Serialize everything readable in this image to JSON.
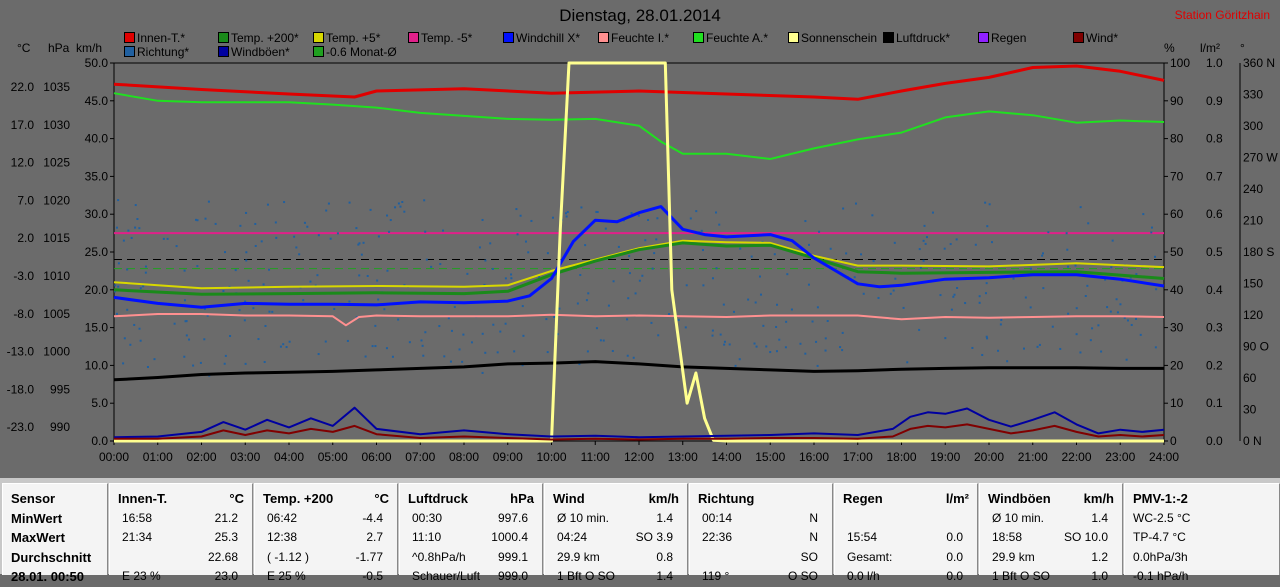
{
  "title": "Dienstag, 28.01.2014",
  "station": "Station Göritzhain",
  "unit_labels": {
    "celsius": "°C",
    "hpa": "hPa",
    "kmh": "km/h",
    "percent": "%",
    "lm2": "l/m²",
    "deg": "°"
  },
  "legend": [
    {
      "label": "Innen-T.*",
      "color": "#e00000"
    },
    {
      "label": "Temp. +200*",
      "color": "#1a8a1a"
    },
    {
      "label": "Temp. +5*",
      "color": "#d8d800"
    },
    {
      "label": "Temp. -5*",
      "color": "#e0208a"
    },
    {
      "label": "Windchill X*",
      "color": "#0010ff"
    },
    {
      "label": "Feuchte I.*",
      "color": "#ff9090"
    },
    {
      "label": "Feuchte A.*",
      "color": "#20e020"
    },
    {
      "label": "Sonnenschein",
      "color": "#ffff90"
    },
    {
      "label": "Luftdruck*",
      "color": "#000000"
    },
    {
      "label": "Regen",
      "color": "#9020ff"
    },
    {
      "label": "Wind*",
      "color": "#800000"
    },
    {
      "label": "Richtung*",
      "color": "#2060a0"
    },
    {
      "label": "Windböen*",
      "color": "#0000a0"
    },
    {
      "label": "-0.6 Monat-Ø",
      "color": "#20a020"
    }
  ],
  "axes": {
    "temp_ticks": [
      "22.0",
      "17.0",
      "12.0",
      "7.0",
      "2.0",
      "-3.0",
      "-8.0",
      "-13.0",
      "-18.0",
      "-23.0"
    ],
    "hpa_ticks": [
      "1035",
      "1030",
      "1025",
      "1020",
      "1015",
      "1010",
      "1005",
      "1000",
      "995",
      "990"
    ],
    "kmh_ticks": [
      "50.0",
      "45.0",
      "40.0",
      "35.0",
      "30.0",
      "25.0",
      "20.0",
      "15.0",
      "10.0",
      "5.0",
      "0.0"
    ],
    "pct_ticks": [
      "100",
      "90",
      "80",
      "70",
      "60",
      "50",
      "40",
      "30",
      "20",
      "10",
      "0"
    ],
    "lm2_ticks": [
      "1.0",
      "0.9",
      "0.8",
      "0.7",
      "0.6",
      "0.5",
      "0.4",
      "0.3",
      "0.2",
      "0.1",
      "0.0"
    ],
    "deg_ticks": [
      "360 N",
      "330",
      "300",
      "270 W",
      "240",
      "210",
      "180 S",
      "150",
      "120",
      "90 O",
      "60",
      "30",
      "0  N"
    ],
    "time_ticks": [
      "00:00",
      "01:00",
      "02:00",
      "03:00",
      "04:00",
      "05:00",
      "06:00",
      "07:00",
      "08:00",
      "09:00",
      "10:00",
      "11:00",
      "12:00",
      "13:00",
      "14:00",
      "15:00",
      "16:00",
      "17:00",
      "18:00",
      "19:00",
      "20:00",
      "21:00",
      "22:00",
      "23:00",
      "24:00"
    ]
  },
  "chart_data": {
    "type": "line",
    "x_unit": "hours",
    "ylim_left_kmh": [
      0,
      50
    ],
    "ylim_temp_c": [
      -23,
      27
    ],
    "ylim_hpa": [
      990,
      1040
    ],
    "ylim_percent": [
      0,
      100
    ],
    "ylim_deg": [
      0,
      360
    ],
    "reference_lines": [
      {
        "name": "Temp. -5*",
        "value_kmh": 27.5,
        "color": "#e0208a"
      },
      {
        "name": "-0.6 Monat-Ø",
        "value_kmh": 22.8,
        "color": "#20a020",
        "style": "dashed"
      },
      {
        "name": "",
        "value_kmh": 24.0,
        "color": "#000000",
        "style": "dashed"
      }
    ],
    "series": [
      {
        "name": "Innen-T.*",
        "color": "#e00000",
        "x": [
          0,
          2,
          4,
          5.5,
          6,
          8,
          10,
          12,
          14,
          16,
          17,
          18,
          19,
          20,
          21,
          22,
          23,
          24
        ],
        "y": [
          47.2,
          46.5,
          45.9,
          45.5,
          46.3,
          46.6,
          46.0,
          46.3,
          45.9,
          45.5,
          45.2,
          46.3,
          47.3,
          48.1,
          49.4,
          49.6,
          48.9,
          47.7
        ]
      },
      {
        "name": "Feuchte A.*",
        "color": "#20e020",
        "x": [
          0,
          1,
          2,
          4,
          5,
          6,
          7,
          9,
          10,
          11,
          12,
          12.5,
          13,
          14,
          15,
          16,
          17,
          18,
          19,
          20,
          21,
          22,
          23,
          24
        ],
        "y": [
          46.0,
          45.0,
          44.8,
          44.8,
          44.5,
          44.1,
          43.4,
          42.6,
          42.5,
          42.6,
          41.7,
          39.6,
          38.0,
          38.0,
          37.3,
          38.7,
          39.9,
          40.8,
          42.8,
          43.6,
          43.1,
          42.1,
          42.4,
          42.2
        ]
      },
      {
        "name": "Temp. +5*",
        "color": "#d8d800",
        "x": [
          0,
          2,
          4,
          6,
          8,
          9,
          10,
          11,
          12,
          13,
          14,
          15,
          16,
          17,
          18,
          20,
          22,
          24
        ],
        "y": [
          21.0,
          20.2,
          20.4,
          20.5,
          20.4,
          20.6,
          22.5,
          24.0,
          25.5,
          26.5,
          26.3,
          26.2,
          24.5,
          23.2,
          23.2,
          23.1,
          23.5,
          23.0
        ]
      },
      {
        "name": "Temp. +200*",
        "color": "#1a8a1a",
        "x": [
          0,
          2,
          4,
          6,
          8,
          9,
          10,
          11,
          12,
          13,
          14,
          15,
          16,
          17,
          18,
          20,
          22,
          24
        ],
        "y": [
          20.0,
          19.4,
          19.5,
          19.6,
          19.5,
          19.8,
          22.0,
          23.8,
          25.3,
          26.2,
          25.8,
          25.9,
          24.2,
          22.4,
          22.2,
          22.3,
          22.4,
          21.5
        ]
      },
      {
        "name": "Windchill X*",
        "color": "#0010ff",
        "x": [
          0,
          1,
          2,
          3,
          4,
          5,
          6,
          7,
          8,
          9,
          9.5,
          10,
          10.5,
          11,
          11.5,
          12,
          12.5,
          13,
          13.5,
          14,
          15,
          15.5,
          16,
          17,
          17.5,
          18,
          19,
          20,
          21,
          22,
          23,
          24
        ],
        "y": [
          19.0,
          18.2,
          17.7,
          18.2,
          18.1,
          18.1,
          18.0,
          18.4,
          18.3,
          18.5,
          19.2,
          21.5,
          26.4,
          29.2,
          29.0,
          30.2,
          31.0,
          28.0,
          27.3,
          27.0,
          27.3,
          26.5,
          24.2,
          20.8,
          20.4,
          20.6,
          21.4,
          21.6,
          22.0,
          22.0,
          21.4,
          20.5
        ]
      },
      {
        "name": "Feuchte I.*",
        "color": "#ff9090",
        "x": [
          0,
          1,
          2,
          3,
          4,
          5,
          5.3,
          5.6,
          6,
          7,
          8,
          9,
          10,
          11,
          12,
          13,
          14,
          15,
          16,
          17,
          18,
          19,
          20,
          21,
          22,
          23,
          24
        ],
        "y": [
          16.5,
          16.8,
          16.8,
          16.6,
          16.6,
          16.5,
          15.3,
          16.4,
          16.6,
          16.5,
          16.5,
          16.5,
          16.7,
          16.5,
          16.6,
          16.5,
          16.4,
          16.6,
          16.6,
          16.6,
          16.1,
          16.4,
          16.3,
          16.4,
          16.5,
          16.5,
          16.4
        ]
      },
      {
        "name": "Luftdruck*",
        "color": "#000000",
        "x": [
          0,
          1,
          2,
          3,
          4,
          5,
          6,
          7,
          8,
          9,
          10,
          11,
          12,
          13,
          14,
          15,
          16,
          17,
          18,
          19,
          20,
          21,
          22,
          23,
          24
        ],
        "y": [
          8.1,
          8.4,
          8.8,
          9.0,
          9.1,
          9.2,
          9.4,
          9.6,
          9.8,
          10.2,
          10.3,
          10.5,
          10.2,
          9.8,
          9.6,
          9.4,
          9.2,
          9.3,
          9.5,
          9.6,
          9.7,
          9.7,
          9.7,
          9.6,
          9.6
        ]
      },
      {
        "name": "Sonnenschein",
        "color": "#ffff90",
        "x": [
          0,
          10.0,
          10.2,
          10.4,
          12.0,
          12.6,
          12.75,
          13.1,
          13.3,
          13.5,
          13.7,
          14.0,
          24
        ],
        "y": [
          0,
          0,
          28.0,
          50,
          50,
          50,
          20.0,
          5.0,
          9.0,
          3.0,
          0.1,
          0,
          0
        ]
      },
      {
        "name": "Windböen*",
        "color": "#0000a0",
        "x": [
          0,
          1,
          2,
          2.5,
          3,
          3.5,
          4,
          4.5,
          5,
          5.5,
          6,
          7,
          8,
          9,
          10,
          11,
          12,
          13,
          14,
          15,
          16,
          17,
          17.8,
          18.2,
          18.6,
          19,
          19.5,
          20,
          20.5,
          21,
          21.5,
          22,
          22.5,
          23,
          23.5,
          24
        ],
        "y": [
          0.5,
          0.6,
          1.2,
          2.5,
          1.5,
          2.8,
          1.8,
          3.0,
          2.0,
          4.4,
          1.6,
          0.9,
          1.4,
          0.9,
          0.6,
          0.7,
          0.5,
          0.6,
          0.7,
          0.8,
          1.0,
          0.8,
          1.6,
          3.2,
          3.8,
          3.6,
          4.3,
          2.8,
          1.9,
          2.8,
          3.8,
          2.2,
          1.0,
          1.5,
          1.2,
          1.5
        ]
      },
      {
        "name": "Wind*",
        "color": "#800000",
        "x": [
          0,
          1,
          2,
          2.5,
          3,
          3.5,
          4,
          4.5,
          5,
          5.5,
          6,
          7,
          8,
          9,
          10,
          11,
          12,
          13,
          14,
          15,
          16,
          17,
          17.8,
          18.2,
          18.6,
          19,
          19.5,
          20,
          20.5,
          21,
          21.5,
          22,
          22.5,
          23,
          23.5,
          24
        ],
        "y": [
          0.3,
          0.3,
          0.6,
          1.4,
          0.8,
          1.4,
          1.0,
          1.6,
          1.2,
          2.0,
          0.9,
          0.4,
          0.6,
          0.4,
          0.2,
          0.3,
          0.2,
          0.3,
          0.3,
          0.4,
          0.4,
          0.3,
          0.6,
          1.6,
          2.0,
          1.8,
          2.2,
          1.6,
          1.0,
          1.4,
          2.0,
          1.2,
          0.6,
          0.8,
          0.6,
          0.8
        ]
      }
    ]
  },
  "table": {
    "row_labels": [
      "Sensor",
      "MinWert",
      "MaxWert",
      "Durchschnitt",
      "28.01. 00:50"
    ],
    "panels": [
      {
        "name": "Innen-T.",
        "unit": "°C",
        "rows": [
          [
            "16:58",
            "21.2"
          ],
          [
            "21:34",
            "25.3"
          ],
          [
            "",
            "22.68"
          ],
          [
            "E 23 %",
            "23.0"
          ]
        ]
      },
      {
        "name": "Temp. +200",
        "unit": "°C",
        "rows": [
          [
            "06:42",
            "-4.4"
          ],
          [
            "12:38",
            "2.7"
          ],
          [
            "( -1.12 )",
            "-1.77"
          ],
          [
            "E 25 %",
            "-0.5"
          ]
        ]
      },
      {
        "name": "Luftdruck",
        "unit": "hPa",
        "rows": [
          [
            "00:30",
            "997.6"
          ],
          [
            "11:10",
            "1000.4"
          ],
          [
            "^0.8hPa/h",
            "999.1"
          ],
          [
            "Schauer/Luft",
            "999.0"
          ]
        ]
      },
      {
        "name": "Wind",
        "unit": "km/h",
        "rows": [
          [
            "Ø 10 min.",
            "1.4"
          ],
          [
            "04:24",
            "SO 3.9"
          ],
          [
            "29.9 km",
            "0.8"
          ],
          [
            "1 Bft O SO",
            "1.4"
          ]
        ]
      },
      {
        "name": "Richtung",
        "unit": "",
        "rows": [
          [
            "00:14",
            "N"
          ],
          [
            "22:36",
            "N"
          ],
          [
            "",
            "SO"
          ],
          [
            "119 °",
            "O SO"
          ]
        ]
      },
      {
        "name": "Regen",
        "unit": "l/m²",
        "rows": [
          [
            "",
            ""
          ],
          [
            "15:54",
            "0.0"
          ],
          [
            "Gesamt:",
            "0.0"
          ],
          [
            "0.0 l/h",
            "0.0"
          ]
        ]
      },
      {
        "name": "Windböen",
        "unit": "km/h",
        "rows": [
          [
            "Ø 10 min.",
            "1.4"
          ],
          [
            "18:58",
            "SO 10.0"
          ],
          [
            "29.9 km",
            "1.2"
          ],
          [
            "1 Bft O SO",
            "1.0"
          ]
        ]
      },
      {
        "name": "PMV-1:-2",
        "unit": "",
        "rows": [
          [
            "WC-2.5 °C",
            ""
          ],
          [
            "TP-4.7 °C",
            ""
          ],
          [
            "0.0hPa/3h",
            ""
          ],
          [
            "-0.1 hPa/h",
            ""
          ]
        ]
      }
    ]
  }
}
